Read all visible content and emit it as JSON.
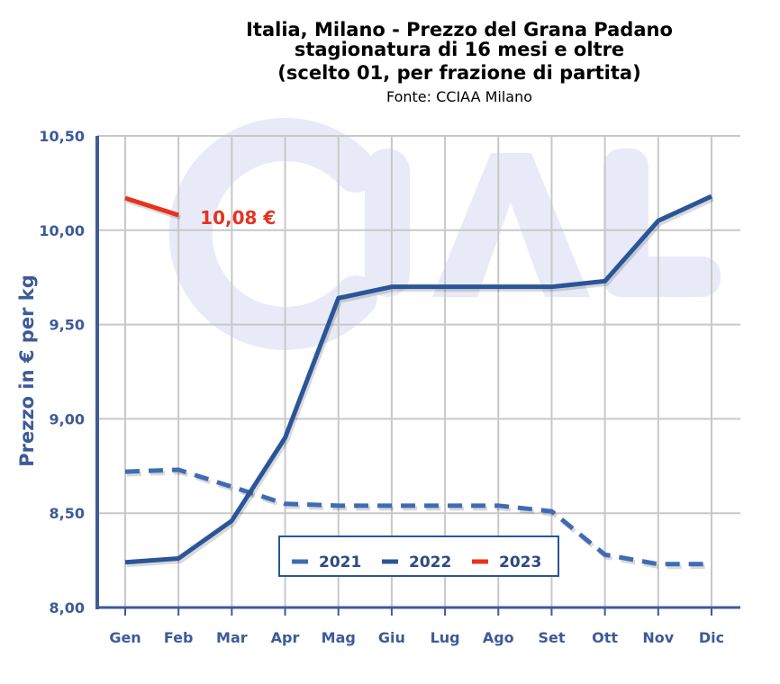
{
  "chart_data": {
    "type": "line",
    "title": [
      "Italia, Milano - Prezzo del Grana Padano",
      "stagionatura di 16 mesi e oltre",
      "(scelto 01, per frazione di partita)"
    ],
    "subtitle": "Fonte: CCIAA Milano",
    "xlabel": "",
    "ylabel": "Prezzo in € per kg",
    "ylim": [
      8.0,
      10.5
    ],
    "yticks": [
      "8,00",
      "8,50",
      "9,00",
      "9,50",
      "10,00",
      "10,50"
    ],
    "ytick_values": [
      8.0,
      8.5,
      9.0,
      9.5,
      10.0,
      10.5
    ],
    "categories": [
      "Gen",
      "Feb",
      "Mar",
      "Apr",
      "Mag",
      "Giu",
      "Lug",
      "Ago",
      "Set",
      "Ott",
      "Nov",
      "Dic"
    ],
    "grid": true,
    "legend_position": "bottom-center",
    "series": [
      {
        "name": "2021",
        "color": "#3e6cb4",
        "style": "dashed",
        "values": [
          8.72,
          8.73,
          8.64,
          8.55,
          8.54,
          8.54,
          8.54,
          8.54,
          8.51,
          8.28,
          8.23,
          8.23
        ]
      },
      {
        "name": "2022",
        "color": "#2a5598",
        "style": "solid",
        "values": [
          8.24,
          8.26,
          8.46,
          8.9,
          9.64,
          9.7,
          9.7,
          9.7,
          9.7,
          9.73,
          10.05,
          10.18
        ]
      },
      {
        "name": "2023",
        "color": "#e8321e",
        "style": "solid",
        "values": [
          10.17,
          10.08,
          null,
          null,
          null,
          null,
          null,
          null,
          null,
          null,
          null,
          null
        ]
      }
    ],
    "annotations": [
      {
        "text": "10,08 €",
        "series": "2023",
        "category": "Feb"
      }
    ]
  }
}
